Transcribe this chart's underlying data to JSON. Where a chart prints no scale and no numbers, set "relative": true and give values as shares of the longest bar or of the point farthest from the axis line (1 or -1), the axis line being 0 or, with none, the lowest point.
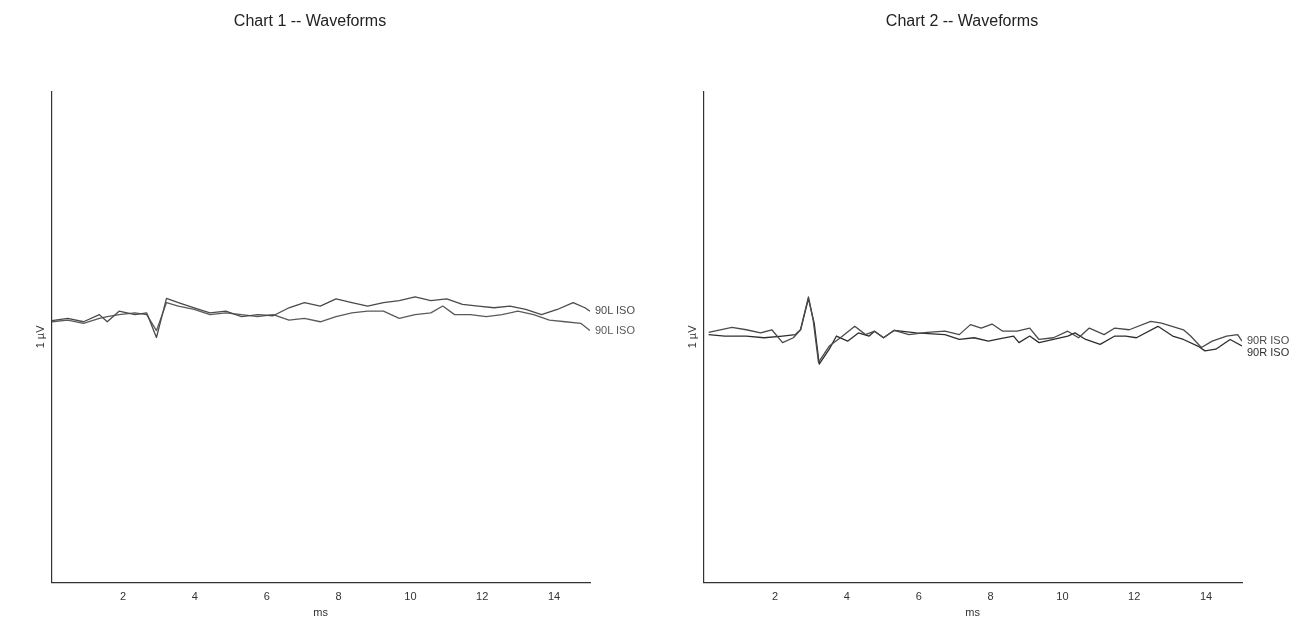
{
  "chart_data": [
    {
      "type": "line",
      "title": "Chart 1 -- Waveforms",
      "xlabel": "ms",
      "ylabel": "1 µV",
      "relative": true,
      "xlim": [
        0,
        15
      ],
      "xticks": [
        2,
        4,
        6,
        8,
        10,
        12,
        14
      ],
      "grid": false,
      "marker": "none",
      "line_style": "solid",
      "series": [
        {
          "name": "90L ISO",
          "color": "#4a4a4a",
          "x": [
            0.02,
            0.46,
            0.9,
            1.34,
            1.56,
            1.89,
            2.33,
            2.66,
            2.93,
            3.21,
            3.54,
            3.98,
            4.42,
            4.86,
            5.3,
            5.74,
            6.18,
            6.62,
            7.05,
            7.49,
            7.93,
            8.37,
            8.81,
            9.25,
            9.69,
            10.13,
            10.57,
            11.01,
            11.45,
            11.89,
            12.33,
            12.77,
            13.21,
            13.65,
            14.09,
            14.53,
            14.86,
            15.0
          ],
          "values": [
            0.917,
            0.925,
            0.913,
            0.938,
            0.913,
            0.95,
            0.938,
            0.944,
            0.858,
            0.995,
            0.98,
            0.962,
            0.944,
            0.95,
            0.931,
            0.938,
            0.934,
            0.962,
            0.98,
            0.968,
            0.993,
            0.98,
            0.968,
            0.98,
            0.987,
            1.0,
            0.987,
            0.993,
            0.974,
            0.968,
            0.962,
            0.968,
            0.956,
            0.938,
            0.956,
            0.98,
            0.962,
            0.95
          ]
        },
        {
          "name": "90L ISO",
          "color": "#5a5a5a",
          "x": [
            0.02,
            0.46,
            0.9,
            1.34,
            1.56,
            1.89,
            2.33,
            2.66,
            2.93,
            3.21,
            3.54,
            3.98,
            4.42,
            4.86,
            5.3,
            5.74,
            6.18,
            6.62,
            7.05,
            7.49,
            7.93,
            8.37,
            8.81,
            9.25,
            9.69,
            10.13,
            10.57,
            10.9,
            11.23,
            11.67,
            12.11,
            12.55,
            12.99,
            13.43,
            13.87,
            14.31,
            14.75,
            15.0
          ],
          "values": [
            0.913,
            0.919,
            0.907,
            0.925,
            0.931,
            0.938,
            0.944,
            0.938,
            0.882,
            0.98,
            0.968,
            0.956,
            0.938,
            0.944,
            0.938,
            0.931,
            0.938,
            0.919,
            0.925,
            0.913,
            0.931,
            0.944,
            0.95,
            0.95,
            0.925,
            0.938,
            0.944,
            0.968,
            0.938,
            0.938,
            0.931,
            0.938,
            0.95,
            0.938,
            0.919,
            0.913,
            0.907,
            0.882
          ]
        }
      ]
    },
    {
      "type": "line",
      "title": "Chart 2 -- Waveforms",
      "xlabel": "ms",
      "ylabel": "1 µV",
      "relative": true,
      "xlim": [
        0,
        15
      ],
      "xticks": [
        2,
        4,
        6,
        8,
        10,
        12,
        14
      ],
      "grid": false,
      "marker": "none",
      "line_style": "solid",
      "series": [
        {
          "name": "90R ISO",
          "color": "#4a4a4a",
          "x": [
            0.15,
            0.8,
            1.2,
            1.6,
            1.91,
            2.21,
            2.51,
            2.71,
            2.93,
            3.06,
            3.21,
            3.51,
            3.82,
            4.22,
            4.52,
            4.77,
            5.02,
            5.32,
            5.73,
            6.23,
            6.73,
            7.13,
            7.44,
            7.74,
            8.04,
            8.34,
            8.74,
            9.09,
            9.35,
            9.75,
            10.15,
            10.45,
            10.75,
            11.16,
            11.46,
            11.86,
            12.46,
            12.76,
            13.37,
            13.57,
            13.87,
            14.17,
            14.57,
            14.88,
            15.0
          ],
          "values": [
            0.876,
            0.893,
            0.885,
            0.874,
            0.885,
            0.84,
            0.857,
            0.885,
            1.0,
            0.92,
            0.771,
            0.828,
            0.857,
            0.897,
            0.868,
            0.88,
            0.857,
            0.883,
            0.868,
            0.876,
            0.88,
            0.868,
            0.903,
            0.891,
            0.905,
            0.88,
            0.88,
            0.891,
            0.851,
            0.857,
            0.88,
            0.857,
            0.891,
            0.868,
            0.891,
            0.885,
            0.914,
            0.908,
            0.885,
            0.863,
            0.823,
            0.845,
            0.863,
            0.868,
            0.845
          ]
        },
        {
          "name": "90R ISO",
          "color": "#2e2e2e",
          "x": [
            0.15,
            0.6,
            1.2,
            1.7,
            2.21,
            2.56,
            2.71,
            2.93,
            3.09,
            3.23,
            3.51,
            3.71,
            4.02,
            4.32,
            4.62,
            4.77,
            5.02,
            5.32,
            5.93,
            6.73,
            7.13,
            7.54,
            7.94,
            8.24,
            8.64,
            8.79,
            9.09,
            9.35,
            9.75,
            10.15,
            10.35,
            10.65,
            11.05,
            11.46,
            11.76,
            12.06,
            12.66,
            13.07,
            13.37,
            13.77,
            13.97,
            14.27,
            14.67,
            15.0
          ],
          "values": [
            0.868,
            0.863,
            0.863,
            0.857,
            0.863,
            0.868,
            0.885,
            0.994,
            0.908,
            0.765,
            0.817,
            0.863,
            0.845,
            0.874,
            0.863,
            0.88,
            0.857,
            0.883,
            0.874,
            0.868,
            0.851,
            0.857,
            0.845,
            0.853,
            0.863,
            0.84,
            0.863,
            0.84,
            0.851,
            0.863,
            0.874,
            0.851,
            0.834,
            0.863,
            0.863,
            0.857,
            0.897,
            0.863,
            0.851,
            0.828,
            0.811,
            0.817,
            0.851,
            0.828
          ]
        }
      ]
    }
  ]
}
